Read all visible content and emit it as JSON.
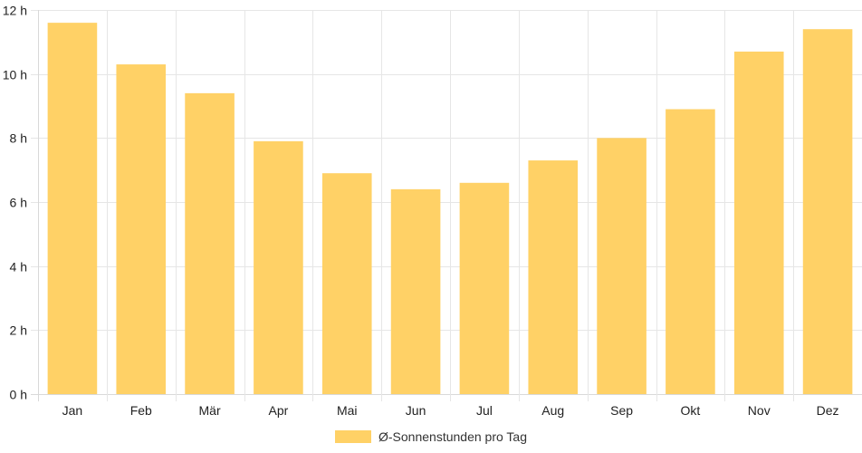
{
  "chart_data": {
    "type": "bar",
    "categories": [
      "Jan",
      "Feb",
      "Mär",
      "Apr",
      "Mai",
      "Jun",
      "Jul",
      "Aug",
      "Sep",
      "Okt",
      "Nov",
      "Dez"
    ],
    "series": [
      {
        "name": "Ø-Sonnenstunden pro Tag",
        "values": [
          11.6,
          10.3,
          9.4,
          7.9,
          6.9,
          6.4,
          6.6,
          7.3,
          8.0,
          8.9,
          10.7,
          11.4
        ],
        "color": "#ffd166"
      }
    ],
    "y_ticks": [
      "0 h",
      "2 h",
      "4 h",
      "6 h",
      "8 h",
      "10 h",
      "12 h"
    ],
    "ylim": [
      0,
      12
    ],
    "grid": true,
    "legend_position": "bottom"
  },
  "colors": {
    "bar": "#ffd166",
    "grid": "#e6e6e6",
    "axis": "#d9d9d9"
  }
}
